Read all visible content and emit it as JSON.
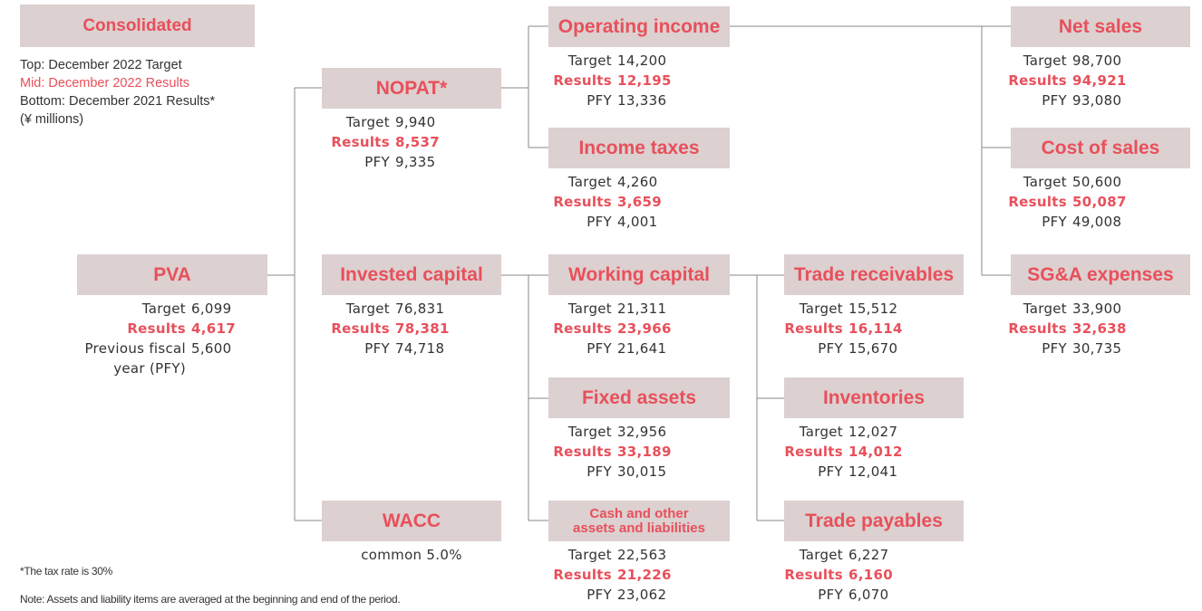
{
  "legend": {
    "title": "Consolidated",
    "lines": [
      "Top: December  2022 Target",
      "Mid: December 2022 Results",
      "Bottom: December 2021 Results*",
      "(¥ millions)"
    ]
  },
  "nodes": [
    {
      "label": "PVA",
      "lines": [
        {
          "label": "Target",
          "value": "6,099"
        },
        {
          "label": "Results",
          "value": "4,617"
        },
        {
          "label": "Previous fiscal year (PFY)",
          "value": "5,600"
        }
      ]
    },
    {
      "label": "NOPAT*",
      "lines": [
        {
          "label": "Target",
          "value": "9,940"
        },
        {
          "label": "Results",
          "value": "8,537"
        },
        {
          "label": "PFY",
          "value": "9,335"
        }
      ]
    },
    {
      "label": "Invested capital",
      "lines": [
        {
          "label": "Target",
          "value": "76,831"
        },
        {
          "label": "Results",
          "value": "78,381"
        },
        {
          "label": "PFY",
          "value": "74,718"
        }
      ]
    },
    {
      "label": "WACC",
      "note": "common 5.0%"
    },
    {
      "label": "Operating income",
      "lines": [
        {
          "label": "Target",
          "value": "14,200"
        },
        {
          "label": "Results",
          "value": "12,195"
        },
        {
          "label": "PFY",
          "value": "13,336"
        }
      ]
    },
    {
      "label": "Income taxes",
      "lines": [
        {
          "label": "Target",
          "value": "4,260"
        },
        {
          "label": "Results",
          "value": "3,659"
        },
        {
          "label": "PFY",
          "value": "4,001"
        }
      ]
    },
    {
      "label": "Working capital",
      "lines": [
        {
          "label": "Target",
          "value": "21,311"
        },
        {
          "label": "Results",
          "value": "23,966"
        },
        {
          "label": "PFY",
          "value": "21,641"
        }
      ]
    },
    {
      "label": "Fixed assets",
      "lines": [
        {
          "label": "Target",
          "value": "32,956"
        },
        {
          "label": "Results",
          "value": "33,189"
        },
        {
          "label": "PFY",
          "value": "30,015"
        }
      ]
    },
    {
      "label": [
        "Cash and other",
        "assets and liabilities"
      ],
      "lines": [
        {
          "label": "Target",
          "value": "22,563"
        },
        {
          "label": "Results",
          "value": "21,226"
        },
        {
          "label": "PFY",
          "value": "23,062"
        }
      ]
    },
    {
      "label": "Trade receivables",
      "lines": [
        {
          "label": "Target",
          "value": "15,512"
        },
        {
          "label": "Results",
          "value": "16,114"
        },
        {
          "label": "PFY",
          "value": "15,670"
        }
      ]
    },
    {
      "label": "Inventories",
      "lines": [
        {
          "label": "Target",
          "value": "12,027"
        },
        {
          "label": "Results",
          "value": "14,012"
        },
        {
          "label": "PFY",
          "value": "12,041"
        }
      ]
    },
    {
      "label": "Trade payables",
      "lines": [
        {
          "label": "Target",
          "value": "6,227"
        },
        {
          "label": "Results",
          "value": "6,160"
        },
        {
          "label": "PFY",
          "value": "6,070"
        }
      ]
    },
    {
      "label": "Net sales",
      "lines": [
        {
          "label": "Target",
          "value": "98,700"
        },
        {
          "label": "Results",
          "value": "94,921"
        },
        {
          "label": "PFY",
          "value": "93,080"
        }
      ]
    },
    {
      "label": "Cost of sales",
      "lines": [
        {
          "label": "Target",
          "value": "50,600"
        },
        {
          "label": "Results",
          "value": "50,087"
        },
        {
          "label": "PFY",
          "value": "49,008"
        }
      ]
    },
    {
      "label": "SG&A expenses",
      "lines": [
        {
          "label": "Target",
          "value": "33,900"
        },
        {
          "label": "Results",
          "value": "32,638"
        },
        {
          "label": "PFY",
          "value": "30,735"
        }
      ]
    }
  ],
  "footnotes": [
    "*The tax rate is 30%",
    "Note: Assets and liability items are averaged at the beginning and end of the period."
  ]
}
